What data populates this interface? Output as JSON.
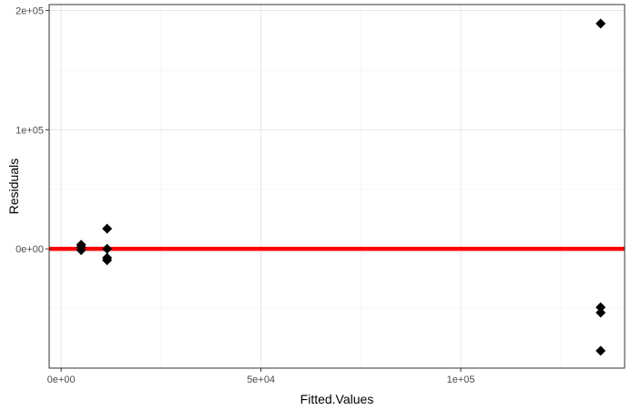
{
  "chart_data": {
    "type": "scatter",
    "title": "",
    "xlabel": "Fitted.Values",
    "ylabel": "Residuals",
    "xlim": [
      -3000,
      141000
    ],
    "ylim": [
      -100000,
      205000
    ],
    "x_ticks": [
      {
        "value": 0,
        "label": "0e+00"
      },
      {
        "value": 50000,
        "label": "5e+04"
      },
      {
        "value": 100000,
        "label": "1e+05"
      }
    ],
    "y_ticks": [
      {
        "value": 0,
        "label": "0e+00"
      },
      {
        "value": 100000,
        "label": "1e+05"
      },
      {
        "value": 200000,
        "label": "2e+05"
      }
    ],
    "x_minor_breaks": [
      25000,
      75000,
      125000
    ],
    "y_minor_breaks": [
      -50000,
      50000,
      150000
    ],
    "grid": true,
    "reference_line": {
      "y": 0,
      "color": "#ff0000"
    },
    "point_color": "#000000",
    "point_shape": "diamond",
    "points": [
      {
        "x": 5000,
        "y": 3500
      },
      {
        "x": 5000,
        "y": 1500
      },
      {
        "x": 5000,
        "y": -1000
      },
      {
        "x": 11500,
        "y": 17000
      },
      {
        "x": 11500,
        "y": 0
      },
      {
        "x": 11500,
        "y": -7500
      },
      {
        "x": 11500,
        "y": -9500
      },
      {
        "x": 135000,
        "y": 189000
      },
      {
        "x": 135000,
        "y": -49000
      },
      {
        "x": 135000,
        "y": -53500
      },
      {
        "x": 135000,
        "y": -85500
      }
    ]
  }
}
